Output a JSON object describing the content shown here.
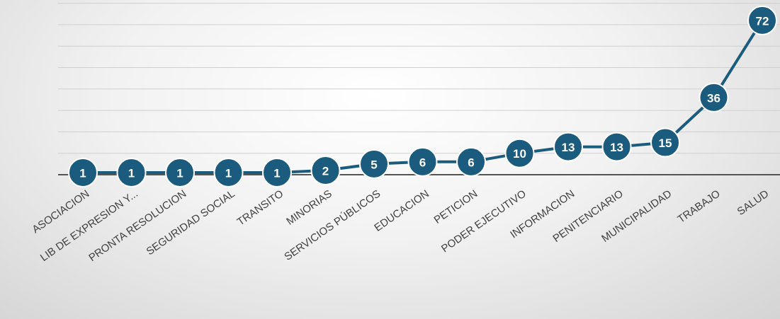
{
  "chart_data": {
    "type": "line",
    "title": "",
    "xlabel": "",
    "ylabel": "",
    "categories": [
      "ASOCIACION",
      "LIB DE EXPRESION Y...",
      "PRONTA RESOLUCION",
      "SEGURIDAD SOCIAL",
      "TRANSITO",
      "MINORIAS",
      "SERVICIOS PÚBLICOS",
      "EDUCACION",
      "PETICION",
      "PODER EJECUTIVO",
      "INFORMACION",
      "PENITENCIARIO",
      "MUNICIPALIDAD",
      "TRABAJO",
      "SALUD"
    ],
    "series": [
      {
        "values": [
          1,
          1,
          1,
          1,
          1,
          2,
          5,
          6,
          6,
          10,
          13,
          13,
          15,
          36,
          72
        ]
      }
    ],
    "data_labels": [
      "1",
      "1",
      "1",
      "1",
      "1",
      "2",
      "5",
      "6",
      "6",
      "10",
      "13",
      "13",
      "15",
      "36",
      "72"
    ],
    "ylim": [
      0,
      80
    ],
    "grid": true,
    "legend": "none",
    "colors": {
      "series": "#1b5c7e",
      "axis": "#555555",
      "grid": "#cfcfcf",
      "label": "#404040"
    }
  }
}
